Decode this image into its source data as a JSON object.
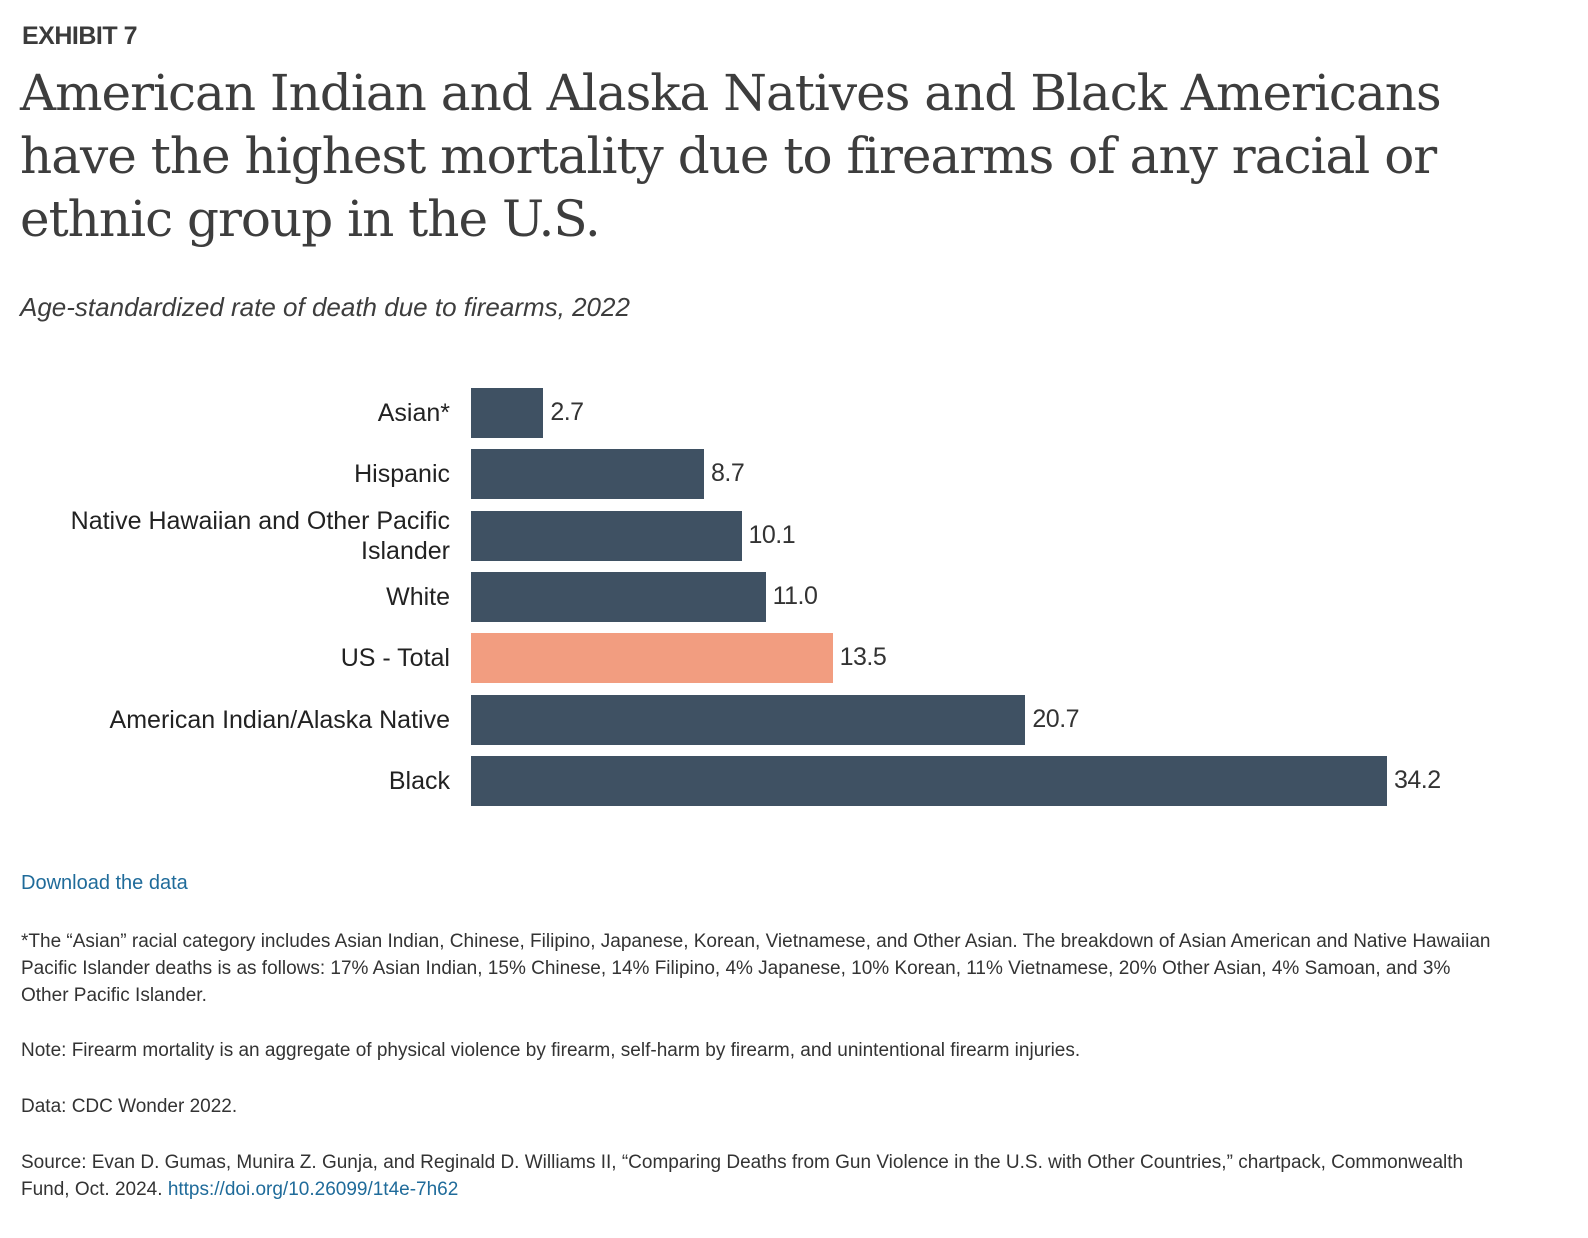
{
  "header": {
    "exhibit": "EXHIBIT 7",
    "title": "American Indian and Alaska Natives and Black Americans have the highest mortality due to firearms of any racial or ethnic group in the U.S.",
    "subtitle": "Age-standardized rate of death due to firearms, 2022"
  },
  "colors": {
    "bar_default": "#3f5163",
    "bar_highlight": "#f29d80",
    "link": "#1f6b9a"
  },
  "chart_data": {
    "type": "bar",
    "orientation": "horizontal",
    "title": "Age-standardized rate of death due to firearms, 2022",
    "xlabel": "",
    "ylabel": "",
    "categories": [
      "Asian*",
      "Hispanic",
      "Native Hawaiian and Other Pacific Islander",
      "White",
      "US - Total",
      "American Indian/Alaska Native",
      "Black"
    ],
    "values": [
      2.7,
      8.7,
      10.1,
      11.0,
      13.5,
      20.7,
      34.2
    ],
    "value_labels": [
      "2.7",
      "8.7",
      "10.1",
      "11.0",
      "13.5",
      "20.7",
      "34.2"
    ],
    "highlight": "US - Total",
    "grid": false,
    "legend": "none",
    "xlim": [
      0,
      34.2
    ]
  },
  "footer": {
    "download_label": "Download the data",
    "footnote": "*The “Asian” racial category includes Asian Indian, Chinese, Filipino, Japanese, Korean, Vietnamese, and Other Asian. The breakdown of Asian American and Native Hawaiian Pacific Islander deaths is as follows: 17% Asian Indian, 15% Chinese, 14% Filipino, 4% Japanese, 10% Korean, 11% Vietnamese, 20% Other Asian, 4% Samoan, and 3% Other Pacific Islander.",
    "note": "Note: Firearm mortality is an aggregate of physical violence by firearm, self-harm by firearm, and unintentional firearm injuries.",
    "data": "Data: CDC Wonder 2022.",
    "source_text": "Source: Evan D. Gumas, Munira Z. Gunja, and Reginald D. Williams II, “Comparing Deaths from Gun Violence in the U.S. with Other Countries,” chartpack, Commonwealth Fund, Oct. 2024.",
    "source_link": "https://doi.org/10.26099/1t4e-7h62"
  }
}
